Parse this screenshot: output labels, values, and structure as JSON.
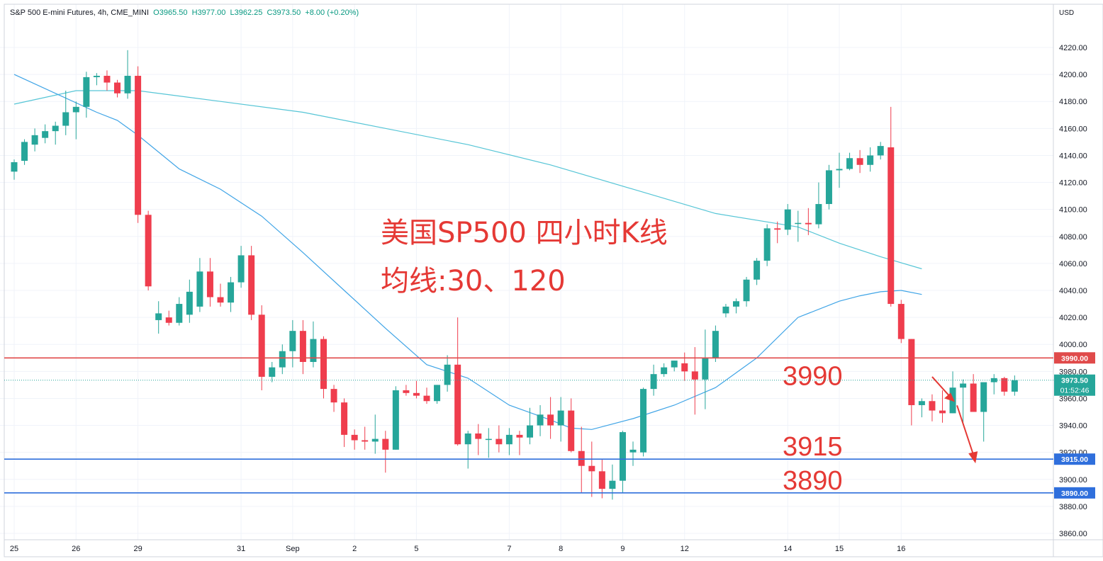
{
  "header": {
    "symbol": "S&P 500 E-mini Futures, 4h, CME_MINI",
    "open": "O3965.50",
    "high": "H3977.00",
    "low": "L3962.25",
    "close": "C3973.50",
    "change": "+8.00 (+0.20%)",
    "currency": "USD"
  },
  "colors": {
    "up": "#26a69a",
    "down": "#ef3d4d",
    "ma30": "#3fa4e6",
    "ma120": "#56c5d6",
    "resistance": "#e04a4a",
    "support": "#2f6fdc",
    "annotation": "#e53935",
    "grid": "#f0f3fa",
    "axis_text": "#131722"
  },
  "chart_data": {
    "type": "candlestick",
    "title": "美国SP500 四小时K线",
    "subtitle": "均线:30、120",
    "ylim": [
      3850,
      4250
    ],
    "y_ticks": [
      "3860.00",
      "3880.00",
      "3900.00",
      "3920.00",
      "3940.00",
      "3960.00",
      "3980.00",
      "4000.00",
      "4020.00",
      "4040.00",
      "4060.00",
      "4080.00",
      "4100.00",
      "4120.00",
      "4140.00",
      "4160.00",
      "4180.00",
      "4200.00",
      "4220.00"
    ],
    "x_ticks": [
      {
        "label": "25",
        "index": 0
      },
      {
        "label": "26",
        "index": 6
      },
      {
        "label": "29",
        "index": 12
      },
      {
        "label": "31",
        "index": 22
      },
      {
        "label": "Sep",
        "index": 27
      },
      {
        "label": "2",
        "index": 33
      },
      {
        "label": "5",
        "index": 39
      },
      {
        "label": "7",
        "index": 48
      },
      {
        "label": "8",
        "index": 53
      },
      {
        "label": "9",
        "index": 59
      },
      {
        "label": "12",
        "index": 65
      },
      {
        "label": "14",
        "index": 75
      },
      {
        "label": "15",
        "index": 80
      },
      {
        "label": "16",
        "index": 86
      }
    ],
    "candles": [
      [
        4128,
        4137,
        4122,
        4135
      ],
      [
        4136,
        4152,
        4133,
        4150
      ],
      [
        4148,
        4160,
        4143,
        4155
      ],
      [
        4153,
        4163,
        4149,
        4158
      ],
      [
        4158,
        4165,
        4148,
        4162
      ],
      [
        4162,
        4188,
        4155,
        4172
      ],
      [
        4172,
        4180,
        4152,
        4176
      ],
      [
        4176,
        4202,
        4168,
        4198
      ],
      [
        4198,
        4201,
        4192,
        4199
      ],
      [
        4199,
        4203,
        4188,
        4194
      ],
      [
        4194,
        4196,
        4183,
        4186
      ],
      [
        4186,
        4218,
        4182,
        4199
      ],
      [
        4199,
        4206,
        4090,
        4096
      ],
      [
        4096,
        4099,
        4040,
        4043
      ],
      [
        4018,
        4032,
        4008,
        4023
      ],
      [
        4020,
        4025,
        4014,
        4016
      ],
      [
        4016,
        4035,
        4014,
        4030
      ],
      [
        4022,
        4048,
        4016,
        4039
      ],
      [
        4028,
        4064,
        4024,
        4054
      ],
      [
        4054,
        4064,
        4028,
        4035
      ],
      [
        4035,
        4045,
        4028,
        4031
      ],
      [
        4031,
        4050,
        4024,
        4046
      ],
      [
        4046,
        4073,
        4042,
        4066
      ],
      [
        4066,
        4073,
        4018,
        4022
      ],
      [
        4022,
        4029,
        3966,
        3976
      ],
      [
        3976,
        3987,
        3972,
        3983
      ],
      [
        3983,
        4000,
        3978,
        3995
      ],
      [
        3995,
        4018,
        3983,
        4010
      ],
      [
        4010,
        4018,
        3978,
        3987
      ],
      [
        3987,
        4017,
        3983,
        4004
      ],
      [
        4004,
        4006,
        3960,
        3967
      ],
      [
        3967,
        3970,
        3950,
        3957
      ],
      [
        3957,
        3960,
        3924,
        3933
      ],
      [
        3933,
        3937,
        3922,
        3929
      ],
      [
        3929,
        3939,
        3922,
        3928
      ],
      [
        3928,
        3948,
        3919,
        3930
      ],
      [
        3930,
        3936,
        3905,
        3922
      ],
      [
        3922,
        3969,
        3922,
        3966
      ],
      [
        3966,
        3970,
        3962,
        3964
      ],
      [
        3964,
        3973,
        3960,
        3962
      ],
      [
        3962,
        3968,
        3956,
        3958
      ],
      [
        3958,
        3970,
        3956,
        3970
      ],
      [
        3970,
        3992,
        3965,
        3985
      ],
      [
        3985,
        4020,
        3925,
        3926
      ],
      [
        3926,
        3936,
        3908,
        3934
      ],
      [
        3934,
        3941,
        3918,
        3930
      ],
      [
        3930,
        3938,
        3916,
        3930
      ],
      [
        3930,
        3940,
        3920,
        3926
      ],
      [
        3926,
        3938,
        3918,
        3933
      ],
      [
        3933,
        3936,
        3918,
        3931
      ],
      [
        3931,
        3953,
        3926,
        3940
      ],
      [
        3940,
        3955,
        3932,
        3948
      ],
      [
        3948,
        3961,
        3930,
        3940
      ],
      [
        3940,
        3961,
        3928,
        3951
      ],
      [
        3951,
        3960,
        3920,
        3921
      ],
      [
        3921,
        3939,
        3890,
        3910
      ],
      [
        3910,
        3928,
        3887,
        3906
      ],
      [
        3906,
        3915,
        3886,
        3893
      ],
      [
        3893,
        3911,
        3885,
        3899
      ],
      [
        3899,
        3936,
        3890,
        3935
      ],
      [
        3920,
        3928,
        3910,
        3922
      ],
      [
        3920,
        3968,
        3917,
        3967
      ],
      [
        3967,
        3985,
        3962,
        3978
      ],
      [
        3978,
        3986,
        3976,
        3983
      ],
      [
        3983,
        3988,
        3980,
        3988
      ],
      [
        3986,
        3994,
        3973,
        3980
      ],
      [
        3980,
        3998,
        3948,
        3974
      ],
      [
        3974,
        4011,
        3952,
        3990
      ],
      [
        3990,
        4014,
        3987,
        4010
      ],
      [
        4023,
        4030,
        4020,
        4028
      ],
      [
        4028,
        4034,
        4023,
        4032
      ],
      [
        4032,
        4050,
        4028,
        4048
      ],
      [
        4048,
        4064,
        4044,
        4062
      ],
      [
        4062,
        4089,
        4058,
        4086
      ],
      [
        4086,
        4091,
        4075,
        4085
      ],
      [
        4085,
        4104,
        4081,
        4100
      ],
      [
        4090,
        4099,
        4076,
        4090
      ],
      [
        4090,
        4101,
        4081,
        4089
      ],
      [
        4089,
        4120,
        4086,
        4104
      ],
      [
        4104,
        4133,
        4100,
        4129
      ],
      [
        4129,
        4142,
        4116,
        4130
      ],
      [
        4130,
        4142,
        4129,
        4138
      ],
      [
        4138,
        4144,
        4127,
        4133
      ],
      [
        4133,
        4146,
        4128,
        4140
      ],
      [
        4140,
        4150,
        4137,
        4147
      ],
      [
        4146,
        4176,
        4028,
        4030
      ],
      [
        4030,
        4033,
        4001,
        4004
      ],
      [
        4004,
        4004,
        3940,
        3955
      ],
      [
        3955,
        3960,
        3946,
        3958
      ],
      [
        3958,
        3963,
        3943,
        3951
      ],
      [
        3951,
        3966,
        3942,
        3949
      ],
      [
        3949,
        3980,
        3949,
        3968
      ],
      [
        3968,
        3974,
        3942,
        3971
      ],
      [
        3971,
        3978,
        3952,
        3950
      ],
      [
        3950,
        3970,
        3928,
        3972
      ],
      [
        3972,
        3978,
        3963,
        3975
      ],
      [
        3975,
        3976,
        3962,
        3965
      ],
      [
        3965,
        3977,
        3962,
        3973.5
      ]
    ],
    "ma30": {
      "name": "MA30",
      "points": [
        [
          0,
          4200
        ],
        [
          4,
          4186
        ],
        [
          8,
          4172
        ],
        [
          10,
          4166
        ],
        [
          12,
          4155
        ],
        [
          16,
          4130
        ],
        [
          20,
          4115
        ],
        [
          24,
          4095
        ],
        [
          28,
          4068
        ],
        [
          32,
          4040
        ],
        [
          36,
          4012
        ],
        [
          40,
          3985
        ],
        [
          44,
          3975
        ],
        [
          48,
          3955
        ],
        [
          52,
          3944
        ],
        [
          54,
          3938
        ],
        [
          56,
          3937
        ],
        [
          60,
          3945
        ],
        [
          64,
          3955
        ],
        [
          68,
          3968
        ],
        [
          72,
          3990
        ],
        [
          76,
          4020
        ],
        [
          80,
          4032
        ],
        [
          82,
          4036
        ],
        [
          84,
          4039
        ],
        [
          86,
          4040
        ],
        [
          88,
          4037
        ]
      ]
    },
    "ma120": {
      "name": "MA120",
      "points": [
        [
          0,
          4178
        ],
        [
          6,
          4188
        ],
        [
          12,
          4188
        ],
        [
          20,
          4180
        ],
        [
          28,
          4172
        ],
        [
          36,
          4160
        ],
        [
          44,
          4148
        ],
        [
          52,
          4133
        ],
        [
          60,
          4115
        ],
        [
          68,
          4097
        ],
        [
          76,
          4087
        ],
        [
          80,
          4075
        ],
        [
          84,
          4065
        ],
        [
          88,
          4056
        ]
      ]
    },
    "levels": [
      {
        "price": 3990,
        "label": "3990",
        "tag": "3990.00",
        "kind": "resistance"
      },
      {
        "price": 3915,
        "label": "3915",
        "tag": "3915.00",
        "kind": "support"
      },
      {
        "price": 3890,
        "label": "3890",
        "tag": "3890.00",
        "kind": "support"
      }
    ],
    "last_price": {
      "price": 3973.5,
      "label": "3973.50",
      "countdown": "01:52:46"
    },
    "forecast_arrow": {
      "from_index": 89,
      "from_price": 3976,
      "mid_index": 91,
      "mid_price": 3959,
      "to_index": 93,
      "to_price": 3914
    }
  }
}
